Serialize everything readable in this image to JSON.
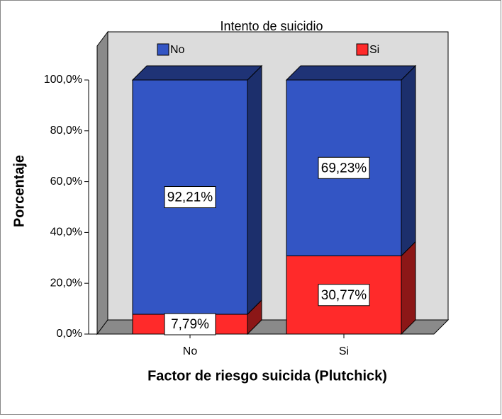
{
  "chart_data": {
    "type": "stacked_bar_3d",
    "title": "Intento de suicidio",
    "x_label": "Factor de riesgo suicida (Plutchick)",
    "y_label": "Porcentaje",
    "categories": [
      "No",
      "Si"
    ],
    "series": [
      {
        "name": "No",
        "color": "#3355c4",
        "values": [
          92.21,
          69.23
        ],
        "value_labels": [
          "92,21%",
          "69,23%"
        ]
      },
      {
        "name": "Si",
        "color": "#ff2a2a",
        "values": [
          7.79,
          30.77
        ],
        "value_labels": [
          "7,79%",
          "30,77%"
        ]
      }
    ],
    "ylim": [
      0,
      100
    ],
    "yticks": [
      {
        "value": 0,
        "label": "0,0%"
      },
      {
        "value": 20,
        "label": "20,0%"
      },
      {
        "value": 40,
        "label": "40,0%"
      },
      {
        "value": 60,
        "label": "60,0%"
      },
      {
        "value": 80,
        "label": "80,0%"
      },
      {
        "value": 100,
        "label": "100,0%"
      }
    ]
  }
}
